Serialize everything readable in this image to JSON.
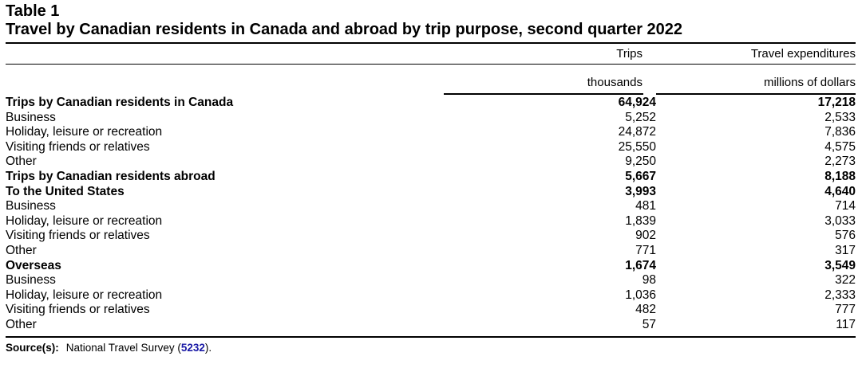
{
  "table_label": "Table 1",
  "title": "Travel by Canadian residents in Canada and abroad by trip purpose, second quarter 2022",
  "columns": [
    {
      "header": "Trips",
      "unit": "thousands"
    },
    {
      "header": "Travel expenditures",
      "unit": "millions of dollars"
    }
  ],
  "rows": [
    {
      "label": "Trips by Canadian residents in Canada",
      "trips": "64,924",
      "expenditures": "17,218",
      "bold": true,
      "indent": 0
    },
    {
      "label": "Business",
      "trips": "5,252",
      "expenditures": "2,533",
      "bold": false,
      "indent": 0
    },
    {
      "label": "Holiday, leisure or recreation",
      "trips": "24,872",
      "expenditures": "7,836",
      "bold": false,
      "indent": 0
    },
    {
      "label": "Visiting friends or relatives",
      "trips": "25,550",
      "expenditures": "4,575",
      "bold": false,
      "indent": 0
    },
    {
      "label": "Other",
      "trips": "9,250",
      "expenditures": "2,273",
      "bold": false,
      "indent": 0
    },
    {
      "label": "Trips by Canadian residents abroad",
      "trips": "5,667",
      "expenditures": "8,188",
      "bold": true,
      "indent": 0
    },
    {
      "label": "To the United States",
      "trips": "3,993",
      "expenditures": "4,640",
      "bold": true,
      "indent": 1
    },
    {
      "label": "Business",
      "trips": "481",
      "expenditures": "714",
      "bold": false,
      "indent": 1
    },
    {
      "label": "Holiday, leisure or recreation",
      "trips": "1,839",
      "expenditures": "3,033",
      "bold": false,
      "indent": 1
    },
    {
      "label": "Visiting friends or relatives",
      "trips": "902",
      "expenditures": "576",
      "bold": false,
      "indent": 1
    },
    {
      "label": "Other",
      "trips": "771",
      "expenditures": "317",
      "bold": false,
      "indent": 1
    },
    {
      "label": "Overseas",
      "trips": "1,674",
      "expenditures": "3,549",
      "bold": true,
      "indent": 1
    },
    {
      "label": "Business",
      "trips": "98",
      "expenditures": "322",
      "bold": false,
      "indent": 1
    },
    {
      "label": "Holiday, leisure or recreation",
      "trips": "1,036",
      "expenditures": "2,333",
      "bold": false,
      "indent": 1
    },
    {
      "label": "Visiting friends or relatives",
      "trips": "482",
      "expenditures": "777",
      "bold": false,
      "indent": 1
    },
    {
      "label": "Other",
      "trips": "57",
      "expenditures": "117",
      "bold": false,
      "indent": 1
    }
  ],
  "source": {
    "label": "Source(s):",
    "text_before": "National Travel Survey (",
    "link_text": "5232",
    "text_after": ")."
  },
  "colors": {
    "link": "#1a1aa6",
    "text": "#000000",
    "background": "#ffffff"
  }
}
